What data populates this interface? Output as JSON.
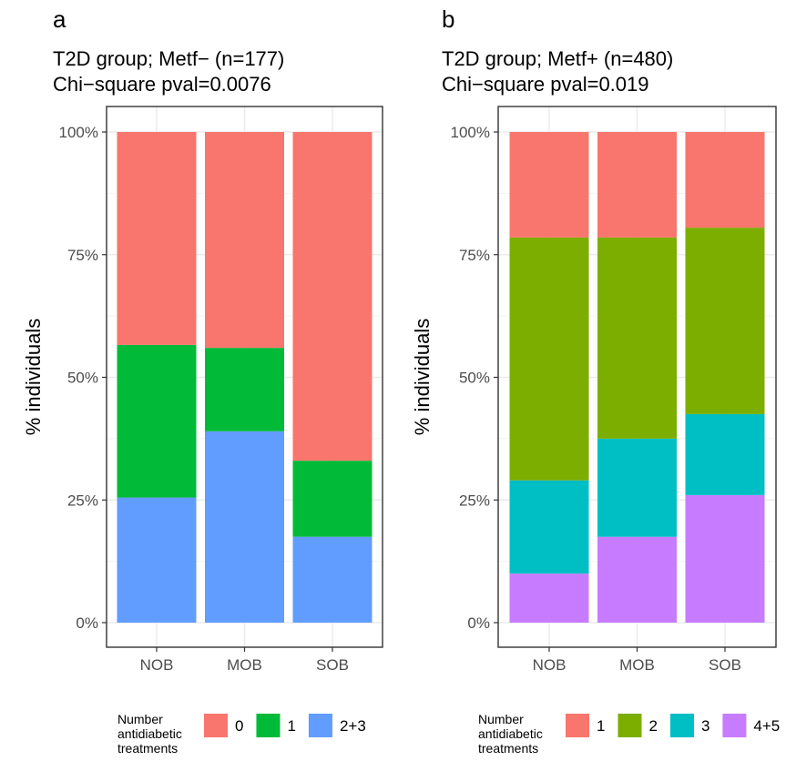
{
  "figure": {
    "legend_title_lines": [
      "Number",
      "antidiabetic",
      "treatments"
    ]
  },
  "chart_data": [
    {
      "type": "bar",
      "stacked": true,
      "panel_letter": "a",
      "title_lines": [
        "T2D group; Metf− (n=177)",
        "Chi−square pval=0.0076"
      ],
      "ylabel": "% individuals",
      "xlabel": "",
      "categories": [
        "NOB",
        "MOB",
        "SOB"
      ],
      "yticks": [
        "0%",
        "25%",
        "50%",
        "75%",
        "100%"
      ],
      "ylim": [
        0,
        100
      ],
      "grid": true,
      "legend_position": "bottom",
      "legend_title": "Number antidiabetic treatments",
      "series": [
        {
          "name": "2+3",
          "color": "#619CFF",
          "values": [
            25.5,
            39,
            17.5
          ]
        },
        {
          "name": "1",
          "color": "#00BA38",
          "values": [
            31.1,
            17,
            15.5
          ]
        },
        {
          "name": "0",
          "color": "#F8766D",
          "values": [
            43.4,
            44,
            67
          ]
        }
      ],
      "legend_order": [
        "0",
        "1",
        "2+3"
      ]
    },
    {
      "type": "bar",
      "stacked": true,
      "panel_letter": "b",
      "title_lines": [
        "T2D group; Metf+ (n=480)",
        "Chi−square pval=0.019"
      ],
      "ylabel": "% individuals",
      "xlabel": "",
      "categories": [
        "NOB",
        "MOB",
        "SOB"
      ],
      "yticks": [
        "0%",
        "25%",
        "50%",
        "75%",
        "100%"
      ],
      "ylim": [
        0,
        100
      ],
      "grid": true,
      "legend_position": "bottom",
      "legend_title": "Number antidiabetic treatments",
      "series": [
        {
          "name": "4+5",
          "color": "#C77CFF",
          "values": [
            10,
            17.5,
            26
          ]
        },
        {
          "name": "3",
          "color": "#00BFC4",
          "values": [
            19,
            20,
            16.5
          ]
        },
        {
          "name": "2",
          "color": "#7CAE00",
          "values": [
            49.5,
            41,
            38
          ]
        },
        {
          "name": "1",
          "color": "#F8766D",
          "values": [
            21.5,
            21.5,
            19.5
          ]
        }
      ],
      "legend_order": [
        "1",
        "2",
        "3",
        "4+5"
      ]
    }
  ]
}
